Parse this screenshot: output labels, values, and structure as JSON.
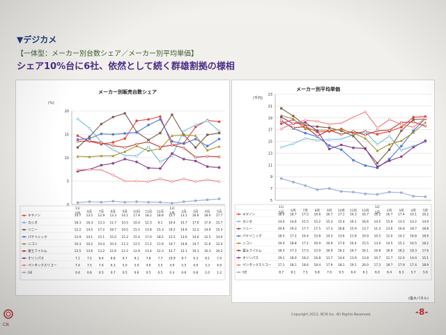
{
  "header": {
    "title": "▼デジカメ",
    "subtitle": "【一体型：メーカー別台数シェア／メーカー別平均単価】",
    "headline": "シェア10%台に6社、依然として続く群雄割拠の様相"
  },
  "footer": {
    "copyright": "Copyright 2012, BCN Inc. All Rights Reserved.",
    "page": "-8-",
    "logo_text": "CN",
    "note": "(最大パネル)"
  },
  "colors": {
    "canon": "#e8423a",
    "casio": "#6fb8d8",
    "sony": "#7a5a4a",
    "panasonic": "#4a76d6",
    "nikon": "#a88f2a",
    "fuji": "#b9312a",
    "olympus": "#8a3a8a",
    "pentax": "#f07a7a",
    "ge": "#9aaad8"
  },
  "chart_data": [
    {
      "type": "line",
      "title": "メーカー別販売台数シェア",
      "ylabel": "(%)",
      "ylim": [
        0,
        20
      ],
      "yticks": [
        "0",
        "5",
        "10",
        "15",
        "20"
      ],
      "categories": [
        "11/5月",
        "6月",
        "7月",
        "8月",
        "9月",
        "10月",
        "11月",
        "12月",
        "12/1月",
        "2月",
        "3月",
        "4月",
        "5月"
      ],
      "series": [
        {
          "name": "キヤノン",
          "color": "canon",
          "values": [
            14.7,
            13.5,
            12.9,
            13.3,
            14.1,
            17.9,
            18.2,
            18.8,
            12.7,
            13.1,
            16.6,
            18.0,
            17.7
          ]
        },
        {
          "name": "カシオ",
          "color": "casio",
          "values": [
            18.3,
            16.3,
            13.3,
            11.7,
            10.5,
            10.4,
            12.3,
            9.1,
            10.4,
            15.7,
            17.0,
            17.9,
            15.7
          ]
        },
        {
          "name": "ソニー",
          "color": "sony",
          "values": [
            12.2,
            14.5,
            17.2,
            18.7,
            19.5,
            15.5,
            13.8,
            15.3,
            19.2,
            14.9,
            12.2,
            14.9,
            15.3
          ]
        },
        {
          "name": "パナソニック",
          "color": "panasonic",
          "values": [
            13.9,
            14.1,
            15.1,
            15.0,
            15.2,
            15.4,
            17.0,
            18.2,
            13.5,
            13.0,
            14.0,
            12.5,
            14.0
          ]
        },
        {
          "name": "ニコン",
          "color": "nikon",
          "values": [
            10.3,
            10.2,
            10.4,
            10.4,
            11.3,
            12.5,
            11.5,
            11.9,
            14.7,
            14.8,
            14.7,
            11.6,
            12.4
          ]
        },
        {
          "name": "富士フイルム",
          "color": "fuji",
          "values": [
            13.5,
            13.6,
            13.2,
            12.6,
            12.2,
            12.9,
            13.4,
            12.3,
            12.7,
            12.1,
            10.1,
            10.3,
            10.2
          ]
        },
        {
          "name": "オリンパス",
          "color": "olympus",
          "values": [
            7.1,
            7.5,
            8.4,
            8.8,
            9.7,
            9.1,
            7.8,
            7.7,
            10.9,
            9.7,
            9.3,
            8.1,
            7.9
          ]
        },
        {
          "name": "ペンタックスリコー",
          "color": "pentax",
          "values": [
            7.4,
            7.5,
            7.4,
            6.3,
            5.0,
            5.0,
            4.9,
            5.5,
            4.9,
            5.5,
            4.9,
            5.3,
            4.9
          ]
        },
        {
          "name": "GE",
          "color": "ge",
          "values": [
            0.4,
            0.6,
            0.5,
            0.7,
            0.5,
            0.6,
            0.5,
            0.5,
            0.3,
            0.6,
            0.8,
            1.0,
            1.2
          ]
        }
      ]
    },
    {
      "type": "line",
      "title": "メーカー別平均単価",
      "ylabel": "(千円)",
      "ylim": [
        5,
        23
      ],
      "yticks": [
        "5",
        "7",
        "9",
        "11",
        "13",
        "15",
        "17",
        "19",
        "21",
        "23"
      ],
      "categories": [
        "11/5月",
        "6月",
        "7月",
        "8月",
        "9月",
        "10月",
        "11月",
        "12月",
        "12/1月",
        "2月",
        "3月",
        "4月",
        "5月"
      ],
      "series": [
        {
          "name": "キヤノン",
          "color": "canon",
          "values": [
            18.0,
            18.7,
            17.5,
            16.6,
            16.7,
            17.1,
            16.3,
            16.7,
            16.2,
            16.7,
            17.4,
            19.1,
            19.2
          ]
        },
        {
          "name": "カシオ",
          "color": "casio",
          "values": [
            14.0,
            14.6,
            15.5,
            15.2,
            15.3,
            15.4,
            16.1,
            16.6,
            14.5,
            15.9,
            13.5,
            14.2,
            14.9
          ]
        },
        {
          "name": "ソニー",
          "color": "sony",
          "values": [
            20.6,
            19.3,
            17.7,
            17.5,
            17.3,
            16.8,
            15.9,
            13.7,
            11.3,
            13.6,
            16.8,
            18.7,
            18.8
          ]
        },
        {
          "name": "パナソニック",
          "color": "panasonic",
          "values": [
            18.5,
            17.2,
            16.4,
            15.8,
            14.3,
            13.6,
            11.8,
            10.9,
            10.5,
            12.0,
            14.2,
            16.8,
            18.9
          ]
        },
        {
          "name": "ニコン",
          "color": "nikon",
          "values": [
            19.4,
            18.8,
            17.1,
            16.9,
            16.9,
            17.0,
            16.4,
            15.5,
            13.4,
            14.5,
            15.1,
            16.5,
            18.2
          ]
        },
        {
          "name": "富士フイルム",
          "color": "fuji",
          "values": [
            18.5,
            17.3,
            17.5,
            15.9,
            16.9,
            16.2,
            16.7,
            16.1,
            16.8,
            16.9,
            18.2,
            18.3,
            17.6
          ]
        },
        {
          "name": "オリンパス",
          "color": "olympus",
          "values": [
            19.1,
            18.0,
            18.2,
            16.8,
            13.7,
            14.4,
            13.9,
            13.8,
            10.7,
            11.7,
            12.4,
            14.0,
            15.1
          ]
        },
        {
          "name": "ペンタックスリコー",
          "color": "pentax",
          "values": [
            17.1,
            18.1,
            18.6,
            18.4,
            17.9,
            18.1,
            19.1,
            20.0,
            17.3,
            18.7,
            17.9,
            17.4,
            18.9
          ]
        },
        {
          "name": "GE",
          "color": "ge",
          "values": [
            8.7,
            8.1,
            7.5,
            6.8,
            7.0,
            6.5,
            6.4,
            6.1,
            6.0,
            6.4,
            6.3,
            5.7,
            5.6
          ]
        }
      ]
    }
  ]
}
